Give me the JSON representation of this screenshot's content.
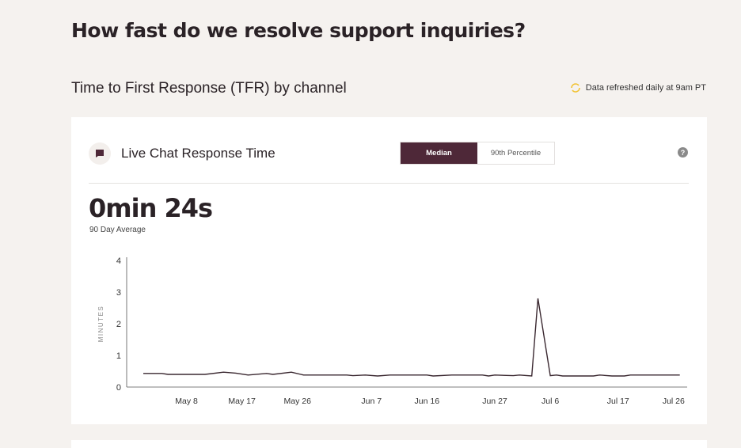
{
  "page_title": "How fast do we resolve support inquiries?",
  "section_title": "Time to First Response (TFR) by channel",
  "refresh_note": "Data refreshed daily at 9am PT",
  "card": {
    "title": "Live Chat Response Time",
    "toggle": {
      "options": [
        "Median",
        "90th Percentile"
      ],
      "selected": "Median"
    },
    "help_icon": "?",
    "metric_value": "0min 24s",
    "metric_label": "90 Day Average"
  },
  "colors": {
    "accent": "#4e2838",
    "refresh_icon": "#f2c230",
    "background": "#f5f2ef"
  },
  "chart_data": {
    "type": "line",
    "ylabel": "MINUTES",
    "ylim": [
      0,
      4
    ],
    "yticks": [
      "0",
      "1",
      "2",
      "3",
      "4"
    ],
    "xlim": [
      -2.7,
      88.2
    ],
    "xticks": [
      {
        "day": 7,
        "label": "May 8"
      },
      {
        "day": 16,
        "label": "May 17"
      },
      {
        "day": 25,
        "label": "May 26"
      },
      {
        "day": 37,
        "label": "Jun 7"
      },
      {
        "day": 46,
        "label": "Jun 16"
      },
      {
        "day": 57,
        "label": "Jun 27"
      },
      {
        "day": 66,
        "label": "Jul 6"
      },
      {
        "day": 77,
        "label": "Jul 17"
      },
      {
        "day": 86,
        "label": "Jul 26"
      }
    ],
    "series": [
      {
        "name": "Median",
        "points": [
          [
            0,
            0.43
          ],
          [
            3,
            0.43
          ],
          [
            4,
            0.4
          ],
          [
            10,
            0.4
          ],
          [
            13,
            0.47
          ],
          [
            15,
            0.44
          ],
          [
            17,
            0.38
          ],
          [
            20,
            0.43
          ],
          [
            21,
            0.4
          ],
          [
            24,
            0.47
          ],
          [
            26,
            0.38
          ],
          [
            33,
            0.38
          ],
          [
            34,
            0.36
          ],
          [
            36,
            0.38
          ],
          [
            38,
            0.35
          ],
          [
            40,
            0.38
          ],
          [
            46,
            0.38
          ],
          [
            47,
            0.35
          ],
          [
            50,
            0.38
          ],
          [
            55,
            0.38
          ],
          [
            56,
            0.35
          ],
          [
            57,
            0.38
          ],
          [
            60,
            0.36
          ],
          [
            61,
            0.38
          ],
          [
            63,
            0.35
          ],
          [
            64,
            2.8
          ],
          [
            66,
            0.36
          ],
          [
            67,
            0.38
          ],
          [
            68,
            0.35
          ],
          [
            73,
            0.35
          ],
          [
            74,
            0.38
          ],
          [
            76,
            0.35
          ],
          [
            78,
            0.35
          ],
          [
            79,
            0.38
          ],
          [
            87,
            0.38
          ]
        ]
      }
    ]
  }
}
